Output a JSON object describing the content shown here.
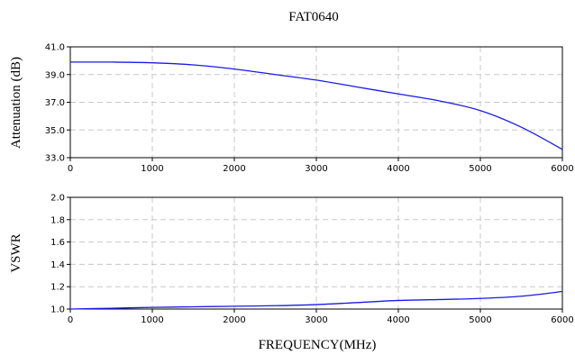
{
  "chart_data": [
    {
      "type": "line",
      "title": "FAT0640",
      "xlabel": "",
      "ylabel": "Attenuation (dB)",
      "xlim": [
        0,
        6000
      ],
      "ylim": [
        33.0,
        41.0
      ],
      "x_ticks": [
        "0",
        "1000",
        "2000",
        "3000",
        "4000",
        "5000",
        "6000"
      ],
      "y_ticks": [
        "41.0",
        "39.0",
        "37.0",
        "35.0",
        "33.0"
      ],
      "x_tick_values": [
        0,
        1000,
        2000,
        3000,
        4000,
        5000,
        6000
      ],
      "y_tick_values": [
        41.0,
        39.0,
        37.0,
        35.0,
        33.0
      ],
      "grid": true,
      "series": [
        {
          "x": [
            0,
            500,
            1000,
            1500,
            2000,
            2500,
            3000,
            3500,
            4000,
            4500,
            5000,
            5500,
            6000
          ],
          "values": [
            39.9,
            39.9,
            39.85,
            39.7,
            39.4,
            39.0,
            38.6,
            38.1,
            37.6,
            37.1,
            36.4,
            35.2,
            33.6
          ]
        }
      ]
    },
    {
      "type": "line",
      "xlabel": "FREQUENCY(MHz)",
      "ylabel": "VSWR",
      "xlim": [
        0,
        6000
      ],
      "ylim": [
        1.0,
        2.0
      ],
      "x_ticks": [
        "0",
        "1000",
        "2000",
        "3000",
        "4000",
        "5000",
        "6000"
      ],
      "y_ticks": [
        "2.0",
        "1.8",
        "1.6",
        "1.4",
        "1.2",
        "1.0"
      ],
      "x_tick_values": [
        0,
        1000,
        2000,
        3000,
        4000,
        5000,
        6000
      ],
      "y_tick_values": [
        2.0,
        1.8,
        1.6,
        1.4,
        1.2,
        1.0
      ],
      "grid": true,
      "series": [
        {
          "x": [
            0,
            500,
            1000,
            1500,
            2000,
            2500,
            3000,
            3500,
            4000,
            4500,
            5000,
            5500,
            6000
          ],
          "values": [
            1.0,
            1.007,
            1.015,
            1.02,
            1.025,
            1.03,
            1.04,
            1.058,
            1.077,
            1.085,
            1.095,
            1.115,
            1.157
          ]
        }
      ]
    }
  ]
}
